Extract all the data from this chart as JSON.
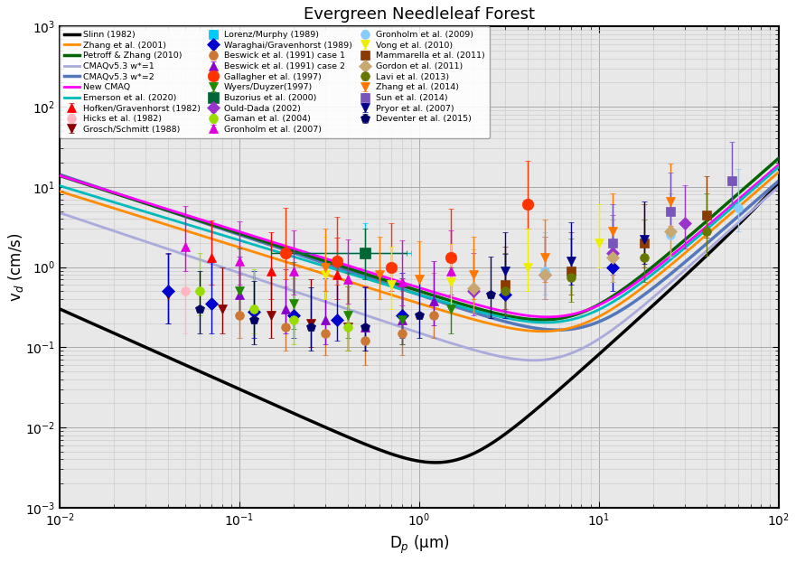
{
  "title": "Evergreen Needleleaf Forest",
  "xlabel": "D$_p$ (μm)",
  "ylabel": "v$_d$ (cm/s)",
  "xlim": [
    0.01,
    100
  ],
  "ylim": [
    0.001,
    1000
  ],
  "bg_color": "#e8e8e8",
  "curve_defs": [
    {
      "name": "Slinn (1982)",
      "color": "#000000",
      "lw": 2.5,
      "zorder": 2,
      "A_b": 0.003,
      "e_b": 1.0,
      "A_i": 3e-07,
      "e_i": 3.5,
      "A_s": 0.0008
    },
    {
      "name": "Zhang et al. (2001)",
      "color": "#ff8c00",
      "lw": 2,
      "zorder": 3,
      "A_b": 0.35,
      "e_b": 0.7,
      "A_i": 0.0008,
      "e_i": 1.8,
      "A_s": 0.0012
    },
    {
      "name": "Petroff & Zhang (2010)",
      "color": "#006400",
      "lw": 2.5,
      "zorder": 3,
      "A_b": 0.5,
      "e_b": 0.72,
      "A_i": 0.0012,
      "e_i": 1.9,
      "A_s": 0.0015
    },
    {
      "name": "CMAQv5.3 w*=1",
      "color": "#aaaadd",
      "lw": 2,
      "zorder": 2,
      "A_b": 0.15,
      "e_b": 0.75,
      "A_i": 0.0002,
      "e_i": 2.0,
      "A_s": 0.0008
    },
    {
      "name": "CMAQv5.3 w*=2",
      "color": "#5577bb",
      "lw": 2.5,
      "zorder": 2,
      "A_b": 0.45,
      "e_b": 0.75,
      "A_i": 0.0006,
      "e_i": 1.9,
      "A_s": 0.0008
    },
    {
      "name": "New CMAQ",
      "color": "#ff00ff",
      "lw": 2,
      "zorder": 4,
      "A_b": 0.55,
      "e_b": 0.7,
      "A_i": 0.0015,
      "e_i": 1.7,
      "A_s": 0.0015
    },
    {
      "name": "Emerson et al. (2020)",
      "color": "#00bbbb",
      "lw": 2,
      "zorder": 4,
      "A_b": 0.45,
      "e_b": 0.68,
      "A_i": 0.001,
      "e_i": 1.7,
      "A_s": 0.0015
    }
  ],
  "meas": [
    {
      "name": "Hofken/Gravenhorst (1982)",
      "color": "#ff0000",
      "marker": "^",
      "ms": 7,
      "x": [
        0.07,
        0.15,
        0.35
      ],
      "y": [
        1.3,
        0.9,
        0.8
      ],
      "yerr_lo": [
        0.7,
        0.5,
        0.4
      ],
      "yerr_hi": [
        2.5,
        1.8,
        1.5
      ]
    },
    {
      "name": "Hicks et al. (1982)",
      "color": "#ffb6c1",
      "marker": "o",
      "ms": 7,
      "x": [
        0.05
      ],
      "y": [
        0.5
      ],
      "yerr_lo": [
        0.35
      ],
      "yerr_hi": [
        1.5
      ]
    },
    {
      "name": "Grosch/Schmitt (1988)",
      "color": "#8b0000",
      "marker": "v",
      "ms": 7,
      "x": [
        0.04,
        0.08,
        0.15,
        0.25,
        0.4
      ],
      "y": [
        0.45,
        0.3,
        0.25,
        0.2,
        0.18
      ],
      "yerr_lo": [
        0.25,
        0.15,
        0.12,
        0.1,
        0.09
      ],
      "yerr_hi": [
        1.0,
        0.7,
        0.6,
        0.5,
        0.4
      ]
    },
    {
      "name": "Lorenz/Murphy (1989)",
      "color": "#00ccff",
      "marker": "s",
      "ms": 7,
      "x": [
        0.5
      ],
      "y": [
        1.5
      ],
      "xerr_lo": [
        0.3
      ],
      "xerr_hi": [
        0.4
      ],
      "yerr_lo": [
        0.8
      ],
      "yerr_hi": [
        2.0
      ]
    },
    {
      "name": "Waraghai/Gravenhorst (1989)",
      "color": "#0000cd",
      "marker": "D",
      "ms": 7,
      "x": [
        0.04,
        0.07,
        0.12,
        0.2,
        0.35,
        0.8,
        3.0,
        12.0
      ],
      "y": [
        0.5,
        0.35,
        0.28,
        0.25,
        0.22,
        0.25,
        0.45,
        1.0
      ],
      "yerr_lo": [
        0.3,
        0.2,
        0.15,
        0.12,
        0.1,
        0.12,
        0.22,
        0.5
      ],
      "yerr_hi": [
        1.0,
        0.8,
        0.6,
        0.55,
        0.5,
        0.6,
        1.0,
        2.0
      ]
    },
    {
      "name": "Beswick et al. (1991) case 1",
      "color": "#cc7733",
      "marker": "o",
      "ms": 7,
      "x": [
        0.1,
        0.18,
        0.3,
        0.5,
        0.8,
        1.2
      ],
      "y": [
        0.25,
        0.18,
        0.15,
        0.12,
        0.15,
        0.25
      ],
      "yerr_lo": [
        0.12,
        0.09,
        0.07,
        0.06,
        0.07,
        0.12
      ],
      "yerr_hi": [
        0.55,
        0.4,
        0.35,
        0.28,
        0.35,
        0.6
      ]
    },
    {
      "name": "Beswick et al. (1991) case 2",
      "color": "#8800cc",
      "marker": "^",
      "ms": 7,
      "x": [
        0.1,
        0.18,
        0.3,
        0.5,
        0.8,
        1.2
      ],
      "y": [
        0.45,
        0.3,
        0.22,
        0.18,
        0.22,
        0.38
      ],
      "yerr_lo": [
        0.22,
        0.15,
        0.11,
        0.09,
        0.11,
        0.19
      ],
      "yerr_hi": [
        0.9,
        0.65,
        0.5,
        0.4,
        0.5,
        0.8
      ]
    },
    {
      "name": "Gallagher et al. (1997)",
      "color": "#ff3300",
      "marker": "o",
      "ms": 9,
      "x": [
        0.18,
        0.35,
        0.7,
        1.5,
        4.0
      ],
      "y": [
        1.5,
        1.2,
        1.0,
        1.3,
        6.0
      ],
      "yerr_lo": [
        0.8,
        0.6,
        0.5,
        0.6,
        3.0
      ],
      "yerr_hi": [
        4.0,
        3.0,
        2.5,
        4.0,
        15.0
      ]
    },
    {
      "name": "Wyers/Duyzer(1997)",
      "color": "#228800",
      "marker": "v",
      "ms": 7,
      "x": [
        0.1,
        0.2,
        0.4,
        0.8,
        1.5
      ],
      "y": [
        0.5,
        0.35,
        0.25,
        0.22,
        0.3
      ],
      "yerr_lo": [
        0.25,
        0.18,
        0.12,
        0.11,
        0.15
      ],
      "yerr_hi": [
        1.2,
        0.8,
        0.6,
        0.5,
        0.7
      ]
    },
    {
      "name": "Buzorius et al. (2000)",
      "color": "#006633",
      "marker": "s",
      "ms": 8,
      "x": [
        0.5
      ],
      "y": [
        1.5
      ],
      "xerr_lo": [
        0.35
      ],
      "xerr_hi": [
        0.35
      ],
      "yerr_lo": [
        0.8
      ],
      "yerr_hi": [
        1.5
      ]
    },
    {
      "name": "Ould-Dada (2002)",
      "color": "#9933cc",
      "marker": "D",
      "ms": 7,
      "x": [
        2.0,
        5.0,
        12.0,
        30.0
      ],
      "y": [
        0.5,
        0.8,
        1.5,
        3.5
      ],
      "yerr_lo": [
        0.25,
        0.4,
        0.7,
        1.8
      ],
      "yerr_hi": [
        1.0,
        1.6,
        3.0,
        7.0
      ]
    },
    {
      "name": "Gaman et al. (2004)",
      "color": "#99dd00",
      "marker": "o",
      "ms": 7,
      "x": [
        0.06,
        0.12,
        0.2,
        0.4
      ],
      "y": [
        0.5,
        0.3,
        0.22,
        0.18
      ],
      "yerr_lo": [
        0.25,
        0.15,
        0.11,
        0.09
      ],
      "yerr_hi": [
        1.0,
        0.65,
        0.5,
        0.4
      ]
    },
    {
      "name": "Gronholm et al. (2007)",
      "color": "#dd00dd",
      "marker": "^",
      "ms": 7,
      "x": [
        0.05,
        0.1,
        0.2,
        0.4,
        0.8,
        1.5
      ],
      "y": [
        1.8,
        1.2,
        0.9,
        0.7,
        0.65,
        0.9
      ],
      "yerr_lo": [
        0.9,
        0.6,
        0.45,
        0.35,
        0.32,
        0.45
      ],
      "yerr_hi": [
        4.0,
        2.5,
        2.0,
        1.5,
        1.5,
        2.0
      ]
    },
    {
      "name": "Gronholm et al. (2009)",
      "color": "#88ccff",
      "marker": "o",
      "ms": 7,
      "x": [
        5.0,
        12.0,
        25.0,
        60.0
      ],
      "y": [
        0.9,
        1.3,
        2.5,
        5.5
      ],
      "yerr_lo": [
        0.45,
        0.65,
        1.2,
        2.7
      ],
      "yerr_hi": [
        1.8,
        2.6,
        5.0,
        11.0
      ]
    },
    {
      "name": "Vong et al. (2010)",
      "color": "#eeee00",
      "marker": "v",
      "ms": 7,
      "x": [
        0.3,
        0.7,
        1.5,
        4.0,
        10.0
      ],
      "y": [
        0.8,
        0.6,
        0.65,
        1.0,
        2.0
      ],
      "yerr_lo": [
        0.4,
        0.3,
        0.32,
        0.5,
        1.0
      ],
      "yerr_hi": [
        1.6,
        1.2,
        1.3,
        2.0,
        4.0
      ]
    },
    {
      "name": "Mammarella et al. (2011)",
      "color": "#8b3a00",
      "marker": "s",
      "ms": 7,
      "x": [
        3.0,
        7.0,
        18.0,
        40.0
      ],
      "y": [
        0.6,
        0.9,
        2.0,
        4.5
      ],
      "yerr_lo": [
        0.3,
        0.45,
        1.0,
        2.2
      ],
      "yerr_hi": [
        1.2,
        1.8,
        4.0,
        9.0
      ]
    },
    {
      "name": "Gordon et al. (2011)",
      "color": "#c8a870",
      "marker": "D",
      "ms": 7,
      "x": [
        2.0,
        5.0,
        12.0,
        25.0
      ],
      "y": [
        0.55,
        0.8,
        1.3,
        2.8
      ],
      "yerr_lo": [
        0.28,
        0.4,
        0.65,
        1.4
      ],
      "yerr_hi": [
        1.1,
        1.6,
        2.6,
        5.6
      ]
    },
    {
      "name": "Lavi et al. (2013)",
      "color": "#667700",
      "marker": "o",
      "ms": 7,
      "x": [
        3.0,
        7.0,
        18.0,
        40.0
      ],
      "y": [
        0.5,
        0.75,
        1.3,
        2.8
      ],
      "yerr_lo": [
        0.25,
        0.38,
        0.65,
        1.4
      ],
      "yerr_hi": [
        1.0,
        1.5,
        2.6,
        5.6
      ]
    },
    {
      "name": "Zhang et al. (2014)",
      "color": "#ff7700",
      "marker": "v",
      "ms": 7,
      "x": [
        0.3,
        0.6,
        1.0,
        2.0,
        5.0,
        12.0,
        25.0
      ],
      "y": [
        1.0,
        0.8,
        0.7,
        0.8,
        1.3,
        2.8,
        6.5
      ],
      "yerr_lo": [
        0.5,
        0.4,
        0.35,
        0.4,
        0.65,
        1.4,
        3.2
      ],
      "yerr_hi": [
        2.0,
        1.6,
        1.4,
        1.6,
        2.6,
        5.6,
        13.0
      ]
    },
    {
      "name": "Sun et al. (2014)",
      "color": "#7755bb",
      "marker": "s",
      "ms": 7,
      "x": [
        12.0,
        25.0,
        55.0
      ],
      "y": [
        2.0,
        5.0,
        12.0
      ],
      "yerr_lo": [
        1.0,
        2.5,
        6.0
      ],
      "yerr_hi": [
        4.0,
        10.0,
        24.0
      ]
    },
    {
      "name": "Pryor et al. (2007)",
      "color": "#000088",
      "marker": "v",
      "ms": 7,
      "x": [
        3.0,
        7.0,
        18.0
      ],
      "y": [
        0.9,
        1.2,
        2.2
      ],
      "yerr_lo": [
        0.45,
        0.6,
        1.1
      ],
      "yerr_hi": [
        1.8,
        2.4,
        4.4
      ]
    },
    {
      "name": "Deventer et al. (2015)",
      "color": "#000066",
      "marker": "p",
      "ms": 7,
      "x": [
        0.06,
        0.12,
        0.25,
        0.5,
        1.0,
        2.5
      ],
      "y": [
        0.3,
        0.22,
        0.18,
        0.18,
        0.25,
        0.45
      ],
      "yerr_lo": [
        0.15,
        0.11,
        0.09,
        0.09,
        0.12,
        0.22
      ],
      "yerr_hi": [
        0.6,
        0.45,
        0.38,
        0.38,
        0.5,
        0.9
      ]
    }
  ]
}
